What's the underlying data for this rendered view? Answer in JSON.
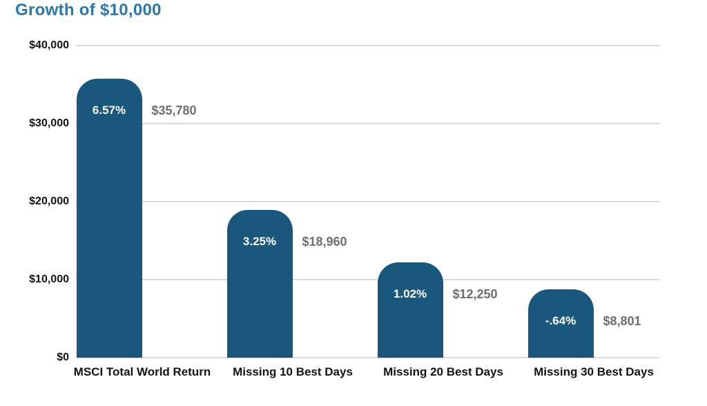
{
  "title": "Growth of $10,000",
  "colors": {
    "bar": "#19587C",
    "title": "#2878AD",
    "value_label": "#6B6F73",
    "axis_label": "#131313",
    "gridline": "#DADADA"
  },
  "chart_data": {
    "type": "bar",
    "title": "Growth of $10,000",
    "categories": [
      "MSCI Total World Return",
      "Missing 10 Best Days",
      "Missing 20 Best Days",
      "Missing 30 Best Days"
    ],
    "values": [
      35780,
      18960,
      12250,
      8801
    ],
    "bar_labels": [
      "6.57%",
      "3.25%",
      "1.02%",
      "-.64%"
    ],
    "value_labels": [
      "$35,780",
      "$18,960",
      "$12,250",
      "$8,801"
    ],
    "annotations": "percent labels are annualized returns shown inside bars; dollar labels are ending values shown right of bars",
    "xlabel": "",
    "ylabel": "",
    "ylim": [
      0,
      40000
    ],
    "yticks": [
      0,
      10000,
      20000,
      30000,
      40000
    ],
    "ytick_labels": [
      "$0",
      "$10,000",
      "$20,000",
      "$30,000",
      "$40,000"
    ],
    "grid": "horizontal",
    "legend": "none",
    "bar_corner": "rounded-top"
  }
}
